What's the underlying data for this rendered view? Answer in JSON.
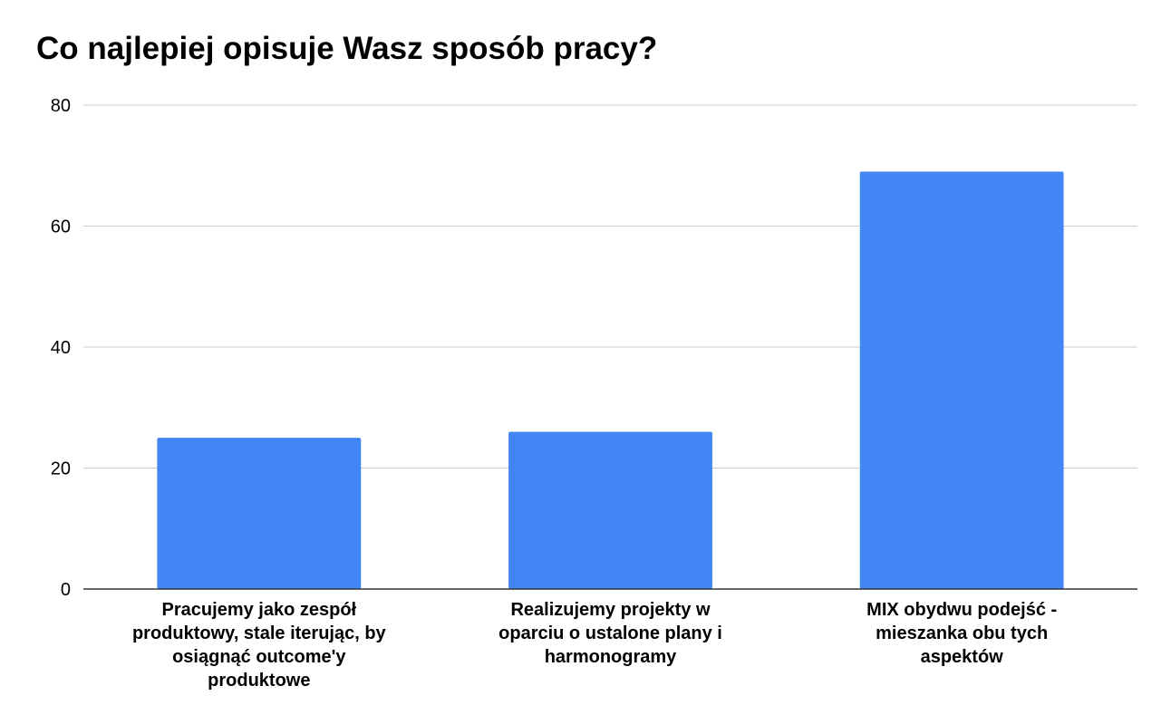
{
  "chart_data": {
    "type": "bar",
    "title": "Co najlepiej opisuje Wasz sposób pracy?",
    "xlabel": "",
    "ylabel": "",
    "categories": [
      "Pracujemy jako zespół produktowy, stale iterując, by osiągnąć outcome'y produktowe",
      "Realizujemy projekty w oparciu o ustalone plany i harmonogramy",
      "MIX obydwu podejść - mieszanka obu tych aspektów"
    ],
    "category_label_lines": [
      [
        "Pracujemy jako zespół",
        "produktowy, stale iterując, by",
        "osiągnąć outcome'y",
        "produktowe"
      ],
      [
        "Realizujemy projekty w",
        "oparciu o ustalone plany i",
        "harmonogramy"
      ],
      [
        "MIX obydwu podejść -",
        "mieszanka obu tych",
        "aspektów"
      ]
    ],
    "values": [
      25,
      26,
      69
    ],
    "ylim": [
      0,
      80
    ],
    "yticks": [
      0,
      20,
      40,
      60,
      80
    ],
    "grid": true,
    "legend": "none",
    "bar_color": "#4285f4",
    "grid_color": "#cccccc",
    "axis_color": "#333333"
  }
}
